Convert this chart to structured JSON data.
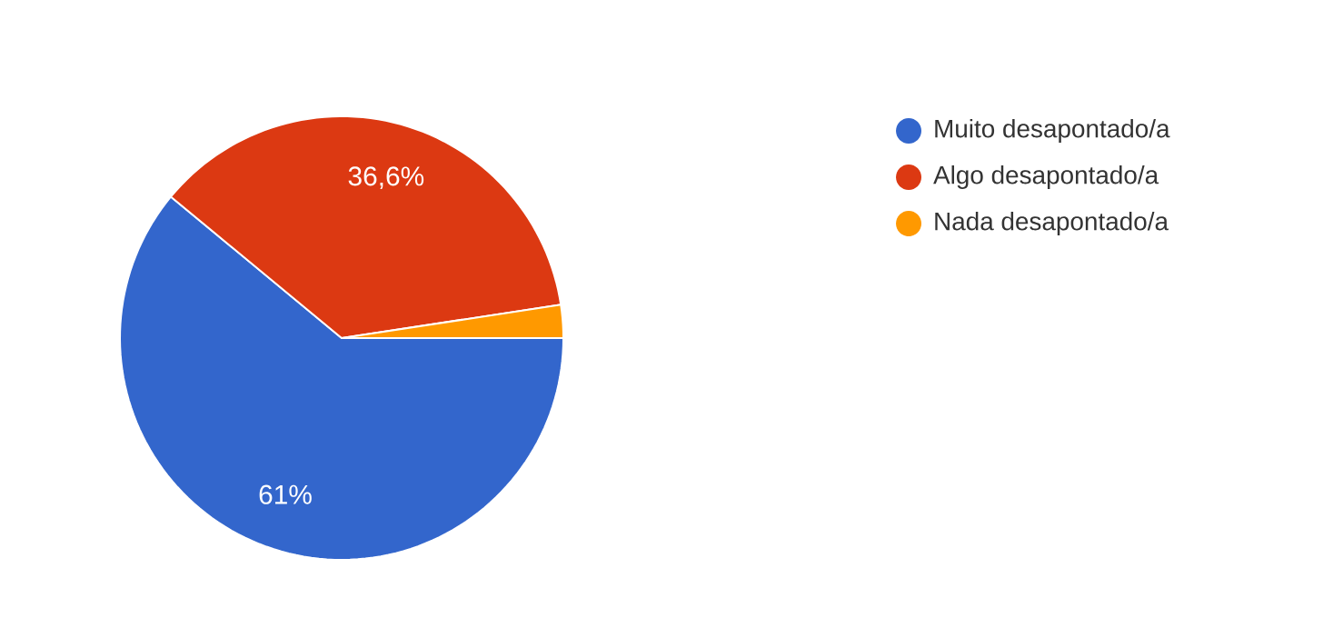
{
  "chart_data": {
    "type": "pie",
    "categories": [
      "Muito desapontado/a",
      "Algo desapontado/a",
      "Nada desapontado/a"
    ],
    "values": [
      61,
      36.6,
      2.4
    ],
    "colors": [
      "#3366cc",
      "#dc3912",
      "#ff9900"
    ],
    "value_labels": [
      "61%",
      "36,6%",
      null
    ],
    "legend": "right"
  }
}
